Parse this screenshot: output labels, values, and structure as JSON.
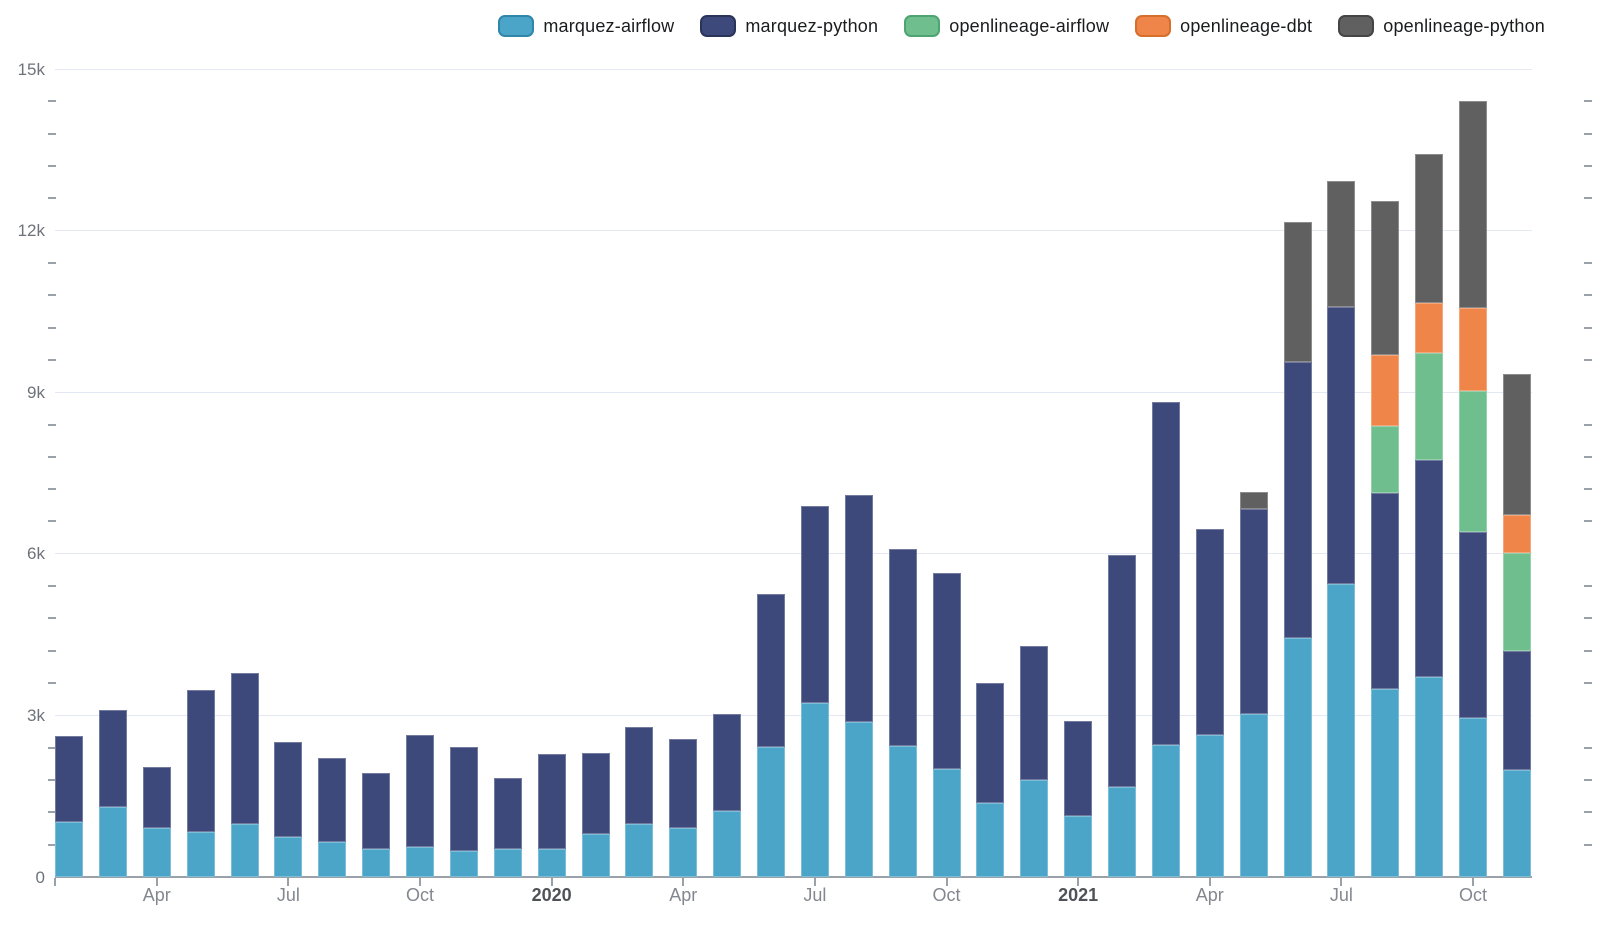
{
  "legend": [
    {
      "name": "marquez-airflow",
      "color": "#4AA5C8",
      "border": "#2F86A9"
    },
    {
      "name": "marquez-python",
      "color": "#3E497B",
      "border": "#2A3459"
    },
    {
      "name": "openlineage-airflow",
      "color": "#6FBE8E",
      "border": "#4EA372"
    },
    {
      "name": "openlineage-dbt",
      "color": "#EF8548",
      "border": "#D66E2C"
    },
    {
      "name": "openlineage-python",
      "color": "#606060",
      "border": "#454545"
    }
  ],
  "chart_data": {
    "type": "bar",
    "stacked": true,
    "title": "",
    "xlabel": "",
    "ylabel": "",
    "ylim": [
      0,
      15000
    ],
    "y_major_step": 3000,
    "y_minor_step": 600,
    "grid": "horizontal-major",
    "legend_position": "top-right",
    "y_tick_labels": [
      "0",
      "3k",
      "6k",
      "9k",
      "12k",
      "15k"
    ],
    "x": [
      "2019-02",
      "2019-03",
      "2019-04",
      "2019-05",
      "2019-06",
      "2019-07",
      "2019-08",
      "2019-09",
      "2019-10",
      "2019-11",
      "2019-12",
      "2020-01",
      "2020-02",
      "2020-03",
      "2020-04",
      "2020-05",
      "2020-06",
      "2020-07",
      "2020-08",
      "2020-09",
      "2020-10",
      "2020-11",
      "2020-12",
      "2021-01",
      "2021-02",
      "2021-03",
      "2021-04",
      "2021-05",
      "2021-06",
      "2021-07",
      "2021-08",
      "2021-09",
      "2021-10",
      "2021-11"
    ],
    "x_tick_labels": [
      {
        "index": 2,
        "label": "Apr",
        "bold": false
      },
      {
        "index": 5,
        "label": "Jul",
        "bold": false
      },
      {
        "index": 8,
        "label": "Oct",
        "bold": false
      },
      {
        "index": 11,
        "label": "2020",
        "bold": true
      },
      {
        "index": 14,
        "label": "Apr",
        "bold": false
      },
      {
        "index": 17,
        "label": "Jul",
        "bold": false
      },
      {
        "index": 20,
        "label": "Oct",
        "bold": false
      },
      {
        "index": 23,
        "label": "2021",
        "bold": true
      },
      {
        "index": 26,
        "label": "Apr",
        "bold": false
      },
      {
        "index": 29,
        "label": "Jul",
        "bold": false
      },
      {
        "index": 32,
        "label": "Oct",
        "bold": false
      }
    ],
    "series": [
      {
        "name": "marquez-airflow",
        "values": [
          1030,
          1300,
          910,
          830,
          990,
          740,
          645,
          515,
          565,
          490,
          515,
          520,
          805,
          985,
          915,
          1230,
          2415,
          3235,
          2880,
          2440,
          2010,
          1375,
          1795,
          1125,
          1670,
          2460,
          2630,
          3020,
          4445,
          5440,
          3485,
          3720,
          2945,
          1995
        ]
      },
      {
        "name": "marquez-python",
        "values": [
          1585,
          1810,
          1130,
          2645,
          2800,
          1765,
          1565,
          1415,
          2070,
          1925,
          1320,
          1770,
          1505,
          1805,
          1640,
          1795,
          2840,
          3650,
          4205,
          3650,
          3635,
          2225,
          2485,
          1770,
          4315,
          6355,
          3825,
          3805,
          5110,
          5140,
          3645,
          4030,
          3460,
          2205
        ]
      },
      {
        "name": "openlineage-airflow",
        "values": [
          0,
          0,
          0,
          0,
          0,
          0,
          0,
          0,
          0,
          0,
          0,
          0,
          0,
          0,
          0,
          0,
          0,
          0,
          0,
          0,
          0,
          0,
          0,
          0,
          0,
          0,
          0,
          0,
          0,
          0,
          1250,
          1975,
          2620,
          1815
        ]
      },
      {
        "name": "openlineage-dbt",
        "values": [
          0,
          0,
          0,
          0,
          0,
          0,
          0,
          0,
          0,
          0,
          0,
          0,
          0,
          0,
          0,
          0,
          0,
          0,
          0,
          0,
          0,
          0,
          0,
          0,
          0,
          0,
          0,
          0,
          0,
          0,
          1315,
          930,
          1530,
          715
        ]
      },
      {
        "name": "openlineage-python",
        "values": [
          0,
          0,
          0,
          0,
          0,
          0,
          0,
          0,
          0,
          0,
          0,
          0,
          0,
          0,
          0,
          0,
          0,
          0,
          0,
          0,
          0,
          0,
          0,
          0,
          0,
          0,
          0,
          325,
          2605,
          2345,
          2860,
          2765,
          3845,
          2610
        ]
      }
    ]
  }
}
